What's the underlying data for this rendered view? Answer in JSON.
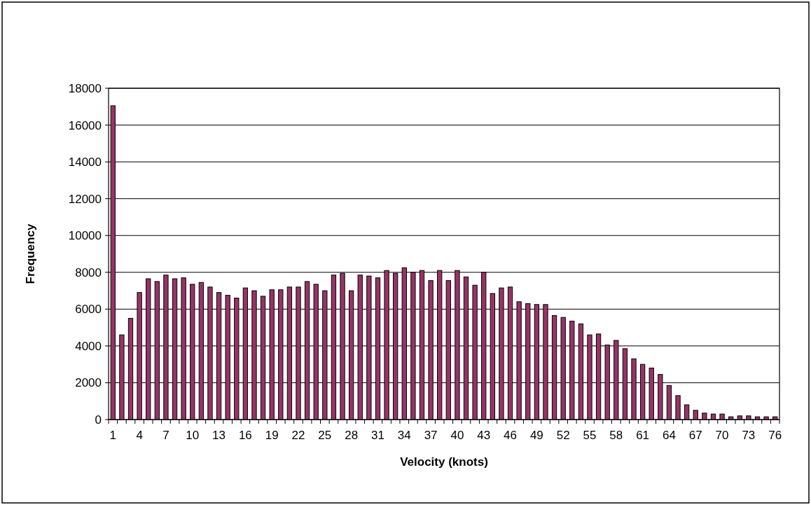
{
  "chart_data": {
    "type": "bar",
    "xlabel": "Velocity (knots)",
    "ylabel": "Frequency",
    "categories": [
      "1",
      null,
      null,
      "4",
      null,
      null,
      "7",
      null,
      null,
      "10",
      null,
      null,
      "13",
      null,
      null,
      "16",
      null,
      null,
      "19",
      null,
      null,
      "22",
      null,
      null,
      "25",
      null,
      null,
      "28",
      null,
      null,
      "31",
      null,
      null,
      "34",
      null,
      null,
      "37",
      null,
      null,
      "40",
      null,
      null,
      "43",
      null,
      null,
      "46",
      null,
      null,
      "49",
      null,
      null,
      "52",
      null,
      null,
      "55",
      null,
      null,
      "58",
      null,
      null,
      "61",
      null,
      null,
      "64",
      null,
      null,
      "67",
      null,
      null,
      "70",
      null,
      null,
      "73",
      null,
      null,
      "76"
    ],
    "values": [
      17050,
      4600,
      5500,
      6900,
      7650,
      7500,
      7850,
      7650,
      7700,
      7350,
      7450,
      7200,
      6900,
      6750,
      6600,
      7150,
      7000,
      6700,
      7050,
      7050,
      7200,
      7200,
      7500,
      7350,
      7000,
      7850,
      7950,
      7000,
      7850,
      7800,
      7700,
      8100,
      7950,
      8250,
      8000,
      8100,
      7550,
      8100,
      7550,
      8100,
      7750,
      7300,
      8000,
      6850,
      7150,
      7200,
      6400,
      6300,
      6250,
      6250,
      5650,
      5550,
      5350,
      5200,
      4600,
      4650,
      4050,
      4300,
      3850,
      3300,
      3000,
      2800,
      2450,
      1850,
      1300,
      800,
      500,
      350,
      300,
      300,
      150,
      200,
      200,
      150,
      150,
      150
    ],
    "color": "#993366",
    "ylim": [
      0,
      18000
    ],
    "yticks": [
      0,
      2000,
      4000,
      6000,
      8000,
      10000,
      12000,
      14000,
      16000,
      18000
    ],
    "grid": "y"
  }
}
